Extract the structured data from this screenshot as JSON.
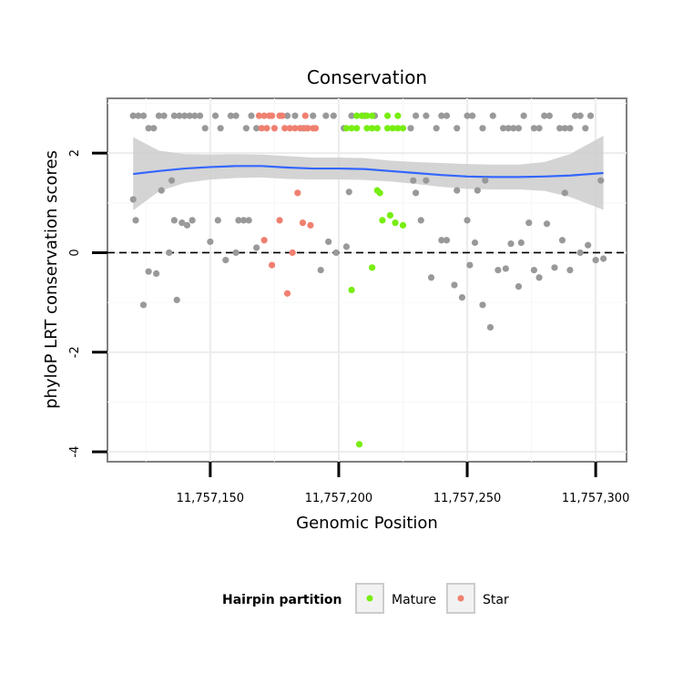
{
  "chart_data": {
    "type": "scatter",
    "title": "Conservation",
    "xlabel": "Genomic Position",
    "ylabel": "phyloP LRT conservation scores",
    "xlim": [
      11757110,
      11757312
    ],
    "ylim": [
      -4.2,
      3.1
    ],
    "x_ticks": [
      11757150,
      11757200,
      11757250,
      11757300
    ],
    "x_tick_labels": [
      "11,757,150",
      "11,757,200",
      "11,757,250",
      "11,757,300"
    ],
    "y_ticks": [
      2,
      0,
      -2,
      -4
    ],
    "y_tick_labels": [
      "2",
      "0",
      "-2",
      "-4"
    ],
    "reference_line": {
      "y": 0,
      "style": "dashed"
    },
    "grid": true,
    "legend": {
      "title": "Hairpin partition",
      "placement": "bottom",
      "entries": [
        {
          "label": "Mature",
          "color": "#77ee11"
        },
        {
          "label": "Star",
          "color": "#f08070"
        }
      ]
    },
    "colors": {
      "other": "#999999",
      "Mature": "#77ee11",
      "Star": "#f08070",
      "smooth_line": "#3366ff",
      "ribbon": "#cccccc"
    },
    "series": [
      {
        "name": "Other",
        "points": [
          [
            11757120,
            2.75
          ],
          [
            11757122,
            2.75
          ],
          [
            11757124,
            2.75
          ],
          [
            11757126,
            2.5
          ],
          [
            11757128,
            2.5
          ],
          [
            11757130,
            2.75
          ],
          [
            11757132,
            2.75
          ],
          [
            11757136,
            2.75
          ],
          [
            11757138,
            2.75
          ],
          [
            11757140,
            2.75
          ],
          [
            11757142,
            2.75
          ],
          [
            11757144,
            2.75
          ],
          [
            11757146,
            2.75
          ],
          [
            11757148,
            2.5
          ],
          [
            11757152,
            2.75
          ],
          [
            11757154,
            2.5
          ],
          [
            11757158,
            2.75
          ],
          [
            11757160,
            2.75
          ],
          [
            11757164,
            2.5
          ],
          [
            11757166,
            2.75
          ],
          [
            11757168,
            2.5
          ],
          [
            11757180,
            2.75
          ],
          [
            11757183,
            2.75
          ],
          [
            11757186,
            2.5
          ],
          [
            11757190,
            2.75
          ],
          [
            11757195,
            2.75
          ],
          [
            11757198,
            2.75
          ],
          [
            11757202,
            2.5
          ],
          [
            11757205,
            2.75
          ],
          [
            11757210,
            2.75
          ],
          [
            11757214,
            2.75
          ],
          [
            11757228,
            2.5
          ],
          [
            11757230,
            2.75
          ],
          [
            11757234,
            2.75
          ],
          [
            11757238,
            2.5
          ],
          [
            11757240,
            2.75
          ],
          [
            11757242,
            2.75
          ],
          [
            11757246,
            2.5
          ],
          [
            11757250,
            2.75
          ],
          [
            11757252,
            2.75
          ],
          [
            11757256,
            2.5
          ],
          [
            11757260,
            2.75
          ],
          [
            11757264,
            2.5
          ],
          [
            11757266,
            2.5
          ],
          [
            11757268,
            2.5
          ],
          [
            11757270,
            2.5
          ],
          [
            11757272,
            2.75
          ],
          [
            11757276,
            2.5
          ],
          [
            11757278,
            2.5
          ],
          [
            11757280,
            2.75
          ],
          [
            11757282,
            2.75
          ],
          [
            11757286,
            2.5
          ],
          [
            11757288,
            2.5
          ],
          [
            11757290,
            2.5
          ],
          [
            11757292,
            2.75
          ],
          [
            11757294,
            2.75
          ],
          [
            11757296,
            2.5
          ],
          [
            11757298,
            2.75
          ],
          [
            11757120,
            1.07
          ],
          [
            11757121,
            0.65
          ],
          [
            11757124,
            -1.05
          ],
          [
            11757126,
            -0.38
          ],
          [
            11757129,
            -0.42
          ],
          [
            11757131,
            1.25
          ],
          [
            11757134,
            0.0
          ],
          [
            11757135,
            1.45
          ],
          [
            11757136,
            0.65
          ],
          [
            11757137,
            -0.95
          ],
          [
            11757139,
            0.6
          ],
          [
            11757141,
            0.55
          ],
          [
            11757143,
            0.65
          ],
          [
            11757150,
            0.22
          ],
          [
            11757153,
            0.65
          ],
          [
            11757156,
            -0.15
          ],
          [
            11757160,
            0.0
          ],
          [
            11757161,
            0.65
          ],
          [
            11757163,
            0.65
          ],
          [
            11757165,
            0.65
          ],
          [
            11757168,
            0.1
          ],
          [
            11757193,
            -0.35
          ],
          [
            11757196,
            0.22
          ],
          [
            11757199,
            0.0
          ],
          [
            11757203,
            0.12
          ],
          [
            11757204,
            1.22
          ],
          [
            11757229,
            1.45
          ],
          [
            11757230,
            1.2
          ],
          [
            11757232,
            0.65
          ],
          [
            11757234,
            1.45
          ],
          [
            11757236,
            -0.5
          ],
          [
            11757240,
            0.25
          ],
          [
            11757242,
            0.25
          ],
          [
            11757245,
            -0.65
          ],
          [
            11757246,
            1.25
          ],
          [
            11757248,
            -0.9
          ],
          [
            11757250,
            0.65
          ],
          [
            11757251,
            -0.25
          ],
          [
            11757253,
            0.2
          ],
          [
            11757254,
            1.25
          ],
          [
            11757256,
            -1.05
          ],
          [
            11757257,
            1.45
          ],
          [
            11757259,
            -1.5
          ],
          [
            11757262,
            -0.35
          ],
          [
            11757265,
            -0.32
          ],
          [
            11757267,
            0.18
          ],
          [
            11757270,
            -0.68
          ],
          [
            11757271,
            0.2
          ],
          [
            11757274,
            0.6
          ],
          [
            11757276,
            -0.35
          ],
          [
            11757278,
            -0.5
          ],
          [
            11757281,
            0.58
          ],
          [
            11757284,
            -0.3
          ],
          [
            11757287,
            0.25
          ],
          [
            11757288,
            1.2
          ],
          [
            11757290,
            -0.35
          ],
          [
            11757294,
            0.0
          ],
          [
            11757297,
            0.15
          ],
          [
            11757300,
            -0.15
          ],
          [
            11757302,
            1.45
          ],
          [
            11757303,
            -0.12
          ]
        ]
      },
      {
        "name": "Star",
        "points": [
          [
            11757169,
            2.75
          ],
          [
            11757170,
            2.5
          ],
          [
            11757171,
            2.75
          ],
          [
            11757172,
            2.5
          ],
          [
            11757173,
            2.75
          ],
          [
            11757174,
            2.75
          ],
          [
            11757175,
            2.5
          ],
          [
            11757177,
            2.75
          ],
          [
            11757178,
            2.75
          ],
          [
            11757179,
            2.5
          ],
          [
            11757181,
            2.5
          ],
          [
            11757183,
            2.5
          ],
          [
            11757185,
            2.5
          ],
          [
            11757187,
            2.5
          ],
          [
            11757187,
            2.75
          ],
          [
            11757188,
            2.5
          ],
          [
            11757190,
            2.5
          ],
          [
            11757191,
            2.5
          ],
          [
            11757171,
            0.25
          ],
          [
            11757174,
            -0.25
          ],
          [
            11757177,
            0.65
          ],
          [
            11757180,
            -0.82
          ],
          [
            11757182,
            0.0
          ],
          [
            11757184,
            1.2
          ],
          [
            11757186,
            0.6
          ],
          [
            11757189,
            0.55
          ]
        ]
      },
      {
        "name": "Mature",
        "points": [
          [
            11757203,
            2.5
          ],
          [
            11757205,
            2.5
          ],
          [
            11757207,
            2.5
          ],
          [
            11757207,
            2.75
          ],
          [
            11757209,
            2.75
          ],
          [
            11757211,
            2.75
          ],
          [
            11757211,
            2.5
          ],
          [
            11757213,
            2.75
          ],
          [
            11757213,
            2.5
          ],
          [
            11757219,
            2.75
          ],
          [
            11757219,
            2.5
          ],
          [
            11757221,
            2.5
          ],
          [
            11757223,
            2.75
          ],
          [
            11757223,
            2.5
          ],
          [
            11757225,
            2.5
          ],
          [
            11757215,
            2.5
          ],
          [
            11757205,
            -0.75
          ],
          [
            11757208,
            -3.85
          ],
          [
            11757213,
            -0.3
          ],
          [
            11757215,
            1.25
          ],
          [
            11757216,
            1.2
          ],
          [
            11757217,
            0.65
          ],
          [
            11757220,
            0.75
          ],
          [
            11757222,
            0.6
          ],
          [
            11757225,
            0.55
          ]
        ]
      }
    ],
    "smooth": {
      "x": [
        11757120,
        11757130,
        11757140,
        11757150,
        11757160,
        11757170,
        11757180,
        11757190,
        11757200,
        11757210,
        11757220,
        11757230,
        11757240,
        11757250,
        11757260,
        11757270,
        11757280,
        11757290,
        11757303
      ],
      "y": [
        1.58,
        1.64,
        1.69,
        1.72,
        1.74,
        1.74,
        1.71,
        1.69,
        1.69,
        1.68,
        1.64,
        1.6,
        1.56,
        1.53,
        1.52,
        1.52,
        1.53,
        1.55,
        1.6
      ],
      "lower": [
        0.85,
        1.23,
        1.4,
        1.47,
        1.5,
        1.51,
        1.48,
        1.47,
        1.47,
        1.46,
        1.43,
        1.38,
        1.32,
        1.28,
        1.27,
        1.27,
        1.24,
        1.12,
        0.86
      ],
      "upper": [
        2.32,
        2.05,
        1.98,
        1.97,
        1.98,
        1.97,
        1.94,
        1.91,
        1.91,
        1.9,
        1.85,
        1.82,
        1.8,
        1.78,
        1.77,
        1.77,
        1.82,
        1.98,
        2.35
      ]
    }
  }
}
